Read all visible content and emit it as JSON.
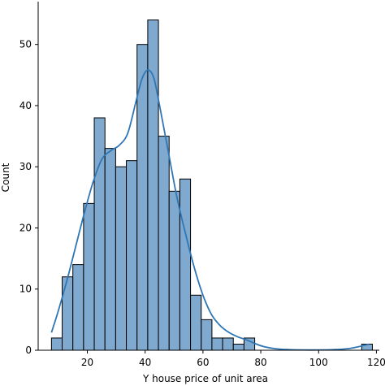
{
  "chart_data": {
    "type": "bar",
    "title": "",
    "xlabel": "Y house price of unit area",
    "ylabel": "Count",
    "xlim": [
      3,
      121
    ],
    "ylim": [
      0,
      57
    ],
    "x_ticks": [
      20,
      40,
      60,
      80,
      100,
      120
    ],
    "y_ticks": [
      0,
      10,
      20,
      30,
      40,
      50
    ],
    "x_tick_labels": [
      "20",
      "40",
      "60",
      "80",
      "100",
      "120"
    ],
    "y_tick_labels": [
      "0",
      "10",
      "20",
      "30",
      "40",
      "50"
    ],
    "bin_width": 3.7,
    "bin_starts": [
      7.6,
      11.3,
      15.0,
      18.7,
      22.4,
      26.1,
      29.8,
      33.5,
      37.2,
      40.9,
      44.6,
      48.3,
      52.0,
      55.7,
      59.4,
      63.1,
      66.8,
      70.5,
      74.2,
      77.9,
      81.6,
      85.3,
      89.0,
      92.7,
      96.4,
      100.1,
      103.8,
      107.5,
      111.2,
      114.9
    ],
    "counts": [
      2,
      12,
      14,
      24,
      38,
      33,
      30,
      31,
      50,
      54,
      35,
      26,
      28,
      9,
      5,
      2,
      2,
      1,
      2,
      0,
      0,
      0,
      0,
      0,
      0,
      0,
      0,
      0,
      0,
      1
    ],
    "kde": {
      "x": [
        7.6,
        10,
        13,
        16,
        19,
        22,
        25,
        28,
        31,
        34,
        37,
        39,
        41,
        43,
        45,
        48,
        51,
        54,
        57,
        60,
        63,
        66,
        69,
        72,
        75,
        78,
        81,
        85,
        90,
        95,
        100,
        105,
        110,
        114,
        117.5
      ],
      "y": [
        2.9,
        6.5,
        11.5,
        17.0,
        22.5,
        27.5,
        31.2,
        32.6,
        33.5,
        35.5,
        41.0,
        44.5,
        45.8,
        44.5,
        40.0,
        32.5,
        25.0,
        19.0,
        13.5,
        9.0,
        5.8,
        4.0,
        2.9,
        2.2,
        1.7,
        1.1,
        0.6,
        0.25,
        0.1,
        0.05,
        0.05,
        0.1,
        0.25,
        0.6,
        1.0
      ]
    },
    "grid": false,
    "legend": "none"
  },
  "colors": {
    "bar_fill": "#7fa9cf",
    "bar_edge": "#000000",
    "kde_line": "#2f76b5",
    "axis": "#000000",
    "background": "#ffffff"
  }
}
